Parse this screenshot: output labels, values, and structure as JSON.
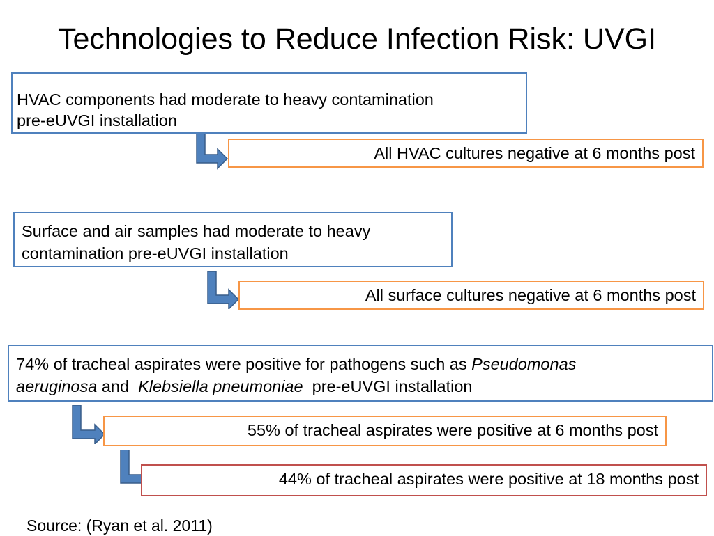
{
  "title": "Technologies to Reduce Infection Risk: UVGI",
  "boxes": {
    "hvac_before": {
      "line1": "HVAC components had moderate to heavy contamination",
      "line2": "pre-eUVGI installation"
    },
    "hvac_after": "All HVAC cultures negative at 6 months post",
    "surface_before": {
      "line1": "Surface and air samples had moderate to heavy",
      "line2": "contamination pre-eUVGI installation"
    },
    "surface_after": "All surface cultures negative at 6 months post",
    "tracheal_before": {
      "part1": "74% of tracheal aspirates were positive for pathogens such as ",
      "pathogen1a": "Pseudomonas",
      "pathogen1b": "aeruginosa",
      "part2": " and  ",
      "pathogen2": "Klebsiella pneumoniae",
      "part3": "  pre-eUVGI installation"
    },
    "tracheal_6mo": "55% of tracheal aspirates were positive at 6 months post",
    "tracheal_18mo": "44% of tracheal aspirates were positive at 18 months post"
  },
  "source": "Source: (Ryan et al. 2011)",
  "colors": {
    "before_border": "#4f81bd",
    "after_border": "#f79646",
    "final_border": "#c0504d",
    "arrow_fill": "#4f81bd",
    "arrow_stroke": "#385d8a"
  }
}
